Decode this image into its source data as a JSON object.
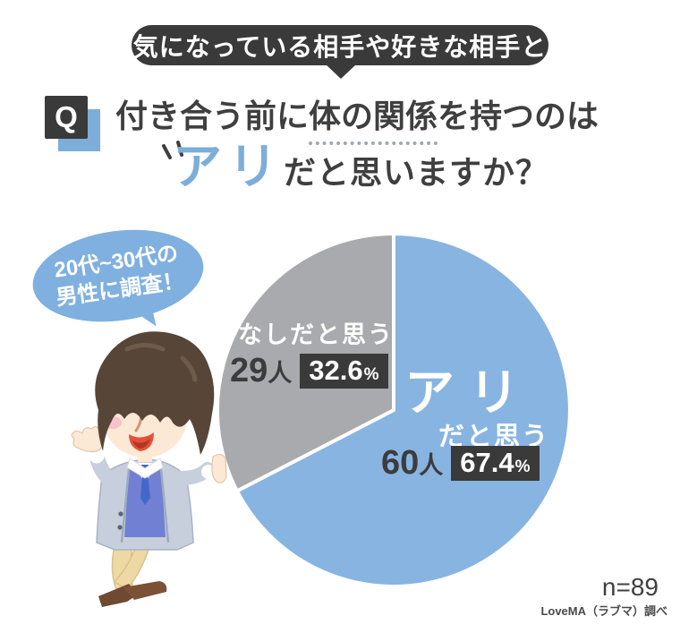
{
  "banner": {
    "text": "気になっている相手や好きな相手と"
  },
  "question": {
    "q_mark": "Q",
    "line1_pre": "付き合う前に",
    "line1_underline": "体の関係",
    "line1_post": "を持つのは",
    "line2_highlight": "アリ",
    "line2_rest": "だと思いますか？"
  },
  "bubble": {
    "line1": "20代~30代の",
    "line2": "男性に調査！"
  },
  "chart_data": {
    "type": "pie",
    "title": "付き合う前に体の関係を持つのはアリだと思いますか？",
    "labels": [
      "アリだと思う",
      "なしだと思う"
    ],
    "values": [
      60,
      29
    ],
    "unit": "人",
    "percents": [
      67.4,
      32.6
    ],
    "colors": [
      "#88b4e1",
      "#a9aaad"
    ],
    "start_angle_deg": -90,
    "direction": "clockwise",
    "n": 89
  },
  "pie_labels": {
    "nashi": {
      "label": "なしだと思う",
      "count": "29",
      "unit": "人",
      "percent": "32.6",
      "sign": "%"
    },
    "ari": {
      "label_main": "アリ",
      "label_sub": "だと思う",
      "count": "60",
      "unit": "人",
      "percent": "67.4",
      "sign": "%"
    }
  },
  "footer": {
    "n_label": "n=89",
    "source": "LoveMA（ラブマ）調べ"
  },
  "colors": {
    "dark": "#3a3a3a",
    "accent_blue": "#7dadd9",
    "pie_blue": "#88b4e1",
    "pie_gray": "#a9aaad",
    "bubble_blue": "#7fb0df",
    "text_dark": "#3f3f3f"
  }
}
